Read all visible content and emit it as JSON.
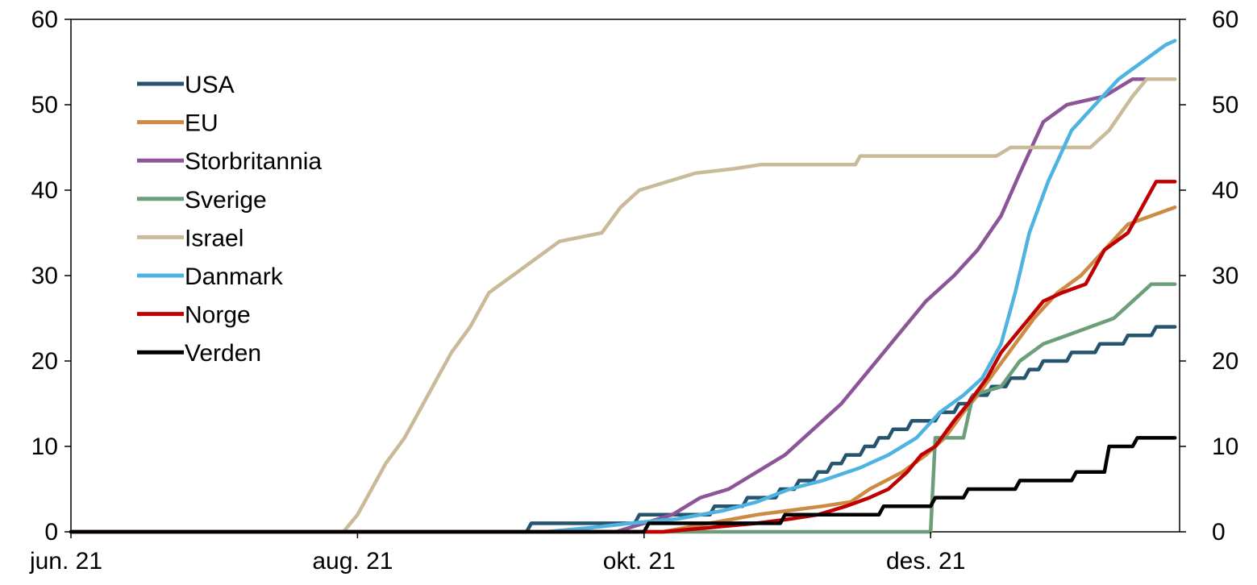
{
  "chart_data": {
    "type": "line",
    "title": "",
    "xlabel": "",
    "ylabel": "",
    "x_domain": [
      "2021-06-01",
      "2022-01-23"
    ],
    "ylim": [
      0,
      60
    ],
    "y_ticks": [
      0,
      10,
      20,
      30,
      40,
      50,
      60
    ],
    "y_tick_labels": [
      "0",
      "10",
      "20",
      "30",
      "40",
      "50",
      "60"
    ],
    "y_right_ticks": [
      0,
      10,
      20,
      30,
      40,
      50,
      60
    ],
    "y_right_tick_labels": [
      "0",
      "10",
      "20",
      "30",
      "40",
      "50",
      "60"
    ],
    "x_ticks": [
      "2021-06-01",
      "2021-08-01",
      "2021-10-01",
      "2021-12-01"
    ],
    "x_tick_labels": [
      "jun. 21",
      "aug. 21",
      "okt. 21",
      "des. 21"
    ],
    "grid": false,
    "legend_position": "top-left",
    "series": [
      {
        "name": "USA",
        "color": "#25546F",
        "points": [
          [
            "2021-06-01",
            0
          ],
          [
            "2021-09-06",
            0
          ],
          [
            "2021-09-07",
            1
          ],
          [
            "2021-09-29",
            1
          ],
          [
            "2021-09-30",
            2
          ],
          [
            "2021-10-15",
            2
          ],
          [
            "2021-10-16",
            3
          ],
          [
            "2021-10-22",
            3
          ],
          [
            "2021-10-23",
            4
          ],
          [
            "2021-10-29",
            4
          ],
          [
            "2021-10-30",
            5
          ],
          [
            "2021-11-02",
            5
          ],
          [
            "2021-11-03",
            6
          ],
          [
            "2021-11-06",
            6
          ],
          [
            "2021-11-07",
            7
          ],
          [
            "2021-11-09",
            7
          ],
          [
            "2021-11-10",
            8
          ],
          [
            "2021-11-12",
            8
          ],
          [
            "2021-11-13",
            9
          ],
          [
            "2021-11-16",
            9
          ],
          [
            "2021-11-17",
            10
          ],
          [
            "2021-11-19",
            10
          ],
          [
            "2021-11-20",
            11
          ],
          [
            "2021-11-22",
            11
          ],
          [
            "2021-11-23",
            12
          ],
          [
            "2021-11-26",
            12
          ],
          [
            "2021-11-27",
            13
          ],
          [
            "2021-12-02",
            13
          ],
          [
            "2021-12-03",
            14
          ],
          [
            "2021-12-06",
            14
          ],
          [
            "2021-12-07",
            15
          ],
          [
            "2021-12-09",
            15
          ],
          [
            "2021-12-10",
            16
          ],
          [
            "2021-12-13",
            16
          ],
          [
            "2021-12-14",
            17
          ],
          [
            "2021-12-17",
            17
          ],
          [
            "2021-12-18",
            18
          ],
          [
            "2021-12-21",
            18
          ],
          [
            "2021-12-22",
            19
          ],
          [
            "2021-12-24",
            19
          ],
          [
            "2021-12-25",
            20
          ],
          [
            "2021-12-30",
            20
          ],
          [
            "2021-12-31",
            21
          ],
          [
            "2022-01-05",
            21
          ],
          [
            "2022-01-06",
            22
          ],
          [
            "2022-01-11",
            22
          ],
          [
            "2022-01-12",
            23
          ],
          [
            "2022-01-17",
            23
          ],
          [
            "2022-01-18",
            24
          ],
          [
            "2022-01-22",
            24
          ]
        ]
      },
      {
        "name": "EU",
        "color": "#CC8A43",
        "points": [
          [
            "2021-06-01",
            0
          ],
          [
            "2021-10-05",
            0
          ],
          [
            "2021-10-10",
            0.5
          ],
          [
            "2021-10-15",
            1
          ],
          [
            "2021-10-20",
            1.5
          ],
          [
            "2021-10-25",
            2
          ],
          [
            "2021-11-01",
            2.5
          ],
          [
            "2021-11-08",
            3
          ],
          [
            "2021-11-14",
            3.5
          ],
          [
            "2021-11-18",
            5
          ],
          [
            "2021-11-25",
            7
          ],
          [
            "2021-11-30",
            9
          ],
          [
            "2021-12-04",
            11
          ],
          [
            "2021-12-08",
            14
          ],
          [
            "2021-12-11",
            16
          ],
          [
            "2021-12-15",
            19
          ],
          [
            "2021-12-19",
            22
          ],
          [
            "2021-12-23",
            25
          ],
          [
            "2021-12-28",
            28
          ],
          [
            "2022-01-02",
            30
          ],
          [
            "2022-01-07",
            33
          ],
          [
            "2022-01-12",
            36
          ],
          [
            "2022-01-22",
            38
          ]
        ]
      },
      {
        "name": "Storbritannia",
        "color": "#8B5597",
        "points": [
          [
            "2021-06-01",
            0
          ],
          [
            "2021-09-25",
            0
          ],
          [
            "2021-10-01",
            1
          ],
          [
            "2021-10-07",
            2
          ],
          [
            "2021-10-13",
            4
          ],
          [
            "2021-10-19",
            5
          ],
          [
            "2021-10-25",
            7
          ],
          [
            "2021-10-31",
            9
          ],
          [
            "2021-11-06",
            12
          ],
          [
            "2021-11-12",
            15
          ],
          [
            "2021-11-18",
            19
          ],
          [
            "2021-11-24",
            23
          ],
          [
            "2021-11-30",
            27
          ],
          [
            "2021-12-06",
            30
          ],
          [
            "2021-12-11",
            33
          ],
          [
            "2021-12-16",
            37
          ],
          [
            "2021-12-20",
            42
          ],
          [
            "2021-12-25",
            48
          ],
          [
            "2021-12-30",
            50
          ],
          [
            "2022-01-07",
            51
          ],
          [
            "2022-01-13",
            53
          ],
          [
            "2022-01-22",
            53
          ]
        ]
      },
      {
        "name": "Sverige",
        "color": "#6C9E7A",
        "points": [
          [
            "2021-06-01",
            0
          ],
          [
            "2021-12-01",
            0
          ],
          [
            "2021-12-02",
            11
          ],
          [
            "2021-12-08",
            11
          ],
          [
            "2021-12-10",
            16
          ],
          [
            "2021-12-16",
            17
          ],
          [
            "2021-12-20",
            20
          ],
          [
            "2021-12-25",
            22
          ],
          [
            "2021-12-30",
            23
          ],
          [
            "2022-01-04",
            24
          ],
          [
            "2022-01-09",
            25
          ],
          [
            "2022-01-13",
            27
          ],
          [
            "2022-01-17",
            29
          ],
          [
            "2022-01-22",
            29
          ]
        ]
      },
      {
        "name": "Israel",
        "color": "#C9BB98",
        "points": [
          [
            "2021-06-01",
            0
          ],
          [
            "2021-07-29",
            0
          ],
          [
            "2021-08-01",
            2
          ],
          [
            "2021-08-04",
            5
          ],
          [
            "2021-08-07",
            8
          ],
          [
            "2021-08-11",
            11
          ],
          [
            "2021-08-15",
            15
          ],
          [
            "2021-08-18",
            18
          ],
          [
            "2021-08-21",
            21
          ],
          [
            "2021-08-25",
            24
          ],
          [
            "2021-08-29",
            28
          ],
          [
            "2021-09-03",
            30
          ],
          [
            "2021-09-08",
            32
          ],
          [
            "2021-09-13",
            34
          ],
          [
            "2021-09-22",
            35
          ],
          [
            "2021-09-26",
            38
          ],
          [
            "2021-09-30",
            40
          ],
          [
            "2021-10-06",
            41
          ],
          [
            "2021-10-12",
            42
          ],
          [
            "2021-10-20",
            42.5
          ],
          [
            "2021-10-26",
            43
          ],
          [
            "2021-11-15",
            43
          ],
          [
            "2021-11-16",
            44
          ],
          [
            "2021-12-15",
            44
          ],
          [
            "2021-12-18",
            45
          ],
          [
            "2022-01-04",
            45
          ],
          [
            "2022-01-08",
            47
          ],
          [
            "2022-01-13",
            51
          ],
          [
            "2022-01-16",
            53
          ],
          [
            "2022-01-22",
            53
          ]
        ]
      },
      {
        "name": "Danmark",
        "color": "#4EB3E0",
        "points": [
          [
            "2021-06-01",
            0
          ],
          [
            "2021-09-10",
            0
          ],
          [
            "2021-09-20",
            0.5
          ],
          [
            "2021-09-28",
            1
          ],
          [
            "2021-10-08",
            1.5
          ],
          [
            "2021-10-18",
            2.5
          ],
          [
            "2021-10-25",
            3.5
          ],
          [
            "2021-11-01",
            5
          ],
          [
            "2021-11-08",
            6
          ],
          [
            "2021-11-16",
            7.5
          ],
          [
            "2021-11-22",
            9
          ],
          [
            "2021-11-28",
            11
          ],
          [
            "2021-12-03",
            14
          ],
          [
            "2021-12-08",
            16
          ],
          [
            "2021-12-12",
            18
          ],
          [
            "2021-12-16",
            22
          ],
          [
            "2021-12-19",
            28
          ],
          [
            "2021-12-22",
            35
          ],
          [
            "2021-12-26",
            41
          ],
          [
            "2021-12-31",
            47
          ],
          [
            "2022-01-05",
            50
          ],
          [
            "2022-01-10",
            53
          ],
          [
            "2022-01-15",
            55
          ],
          [
            "2022-01-20",
            57
          ],
          [
            "2022-01-22",
            57.5
          ]
        ]
      },
      {
        "name": "Norge",
        "color": "#C00000",
        "points": [
          [
            "2021-06-01",
            0
          ],
          [
            "2021-10-05",
            0
          ],
          [
            "2021-10-15",
            0.5
          ],
          [
            "2021-10-25",
            1
          ],
          [
            "2021-11-01",
            1.5
          ],
          [
            "2021-11-07",
            2
          ],
          [
            "2021-11-13",
            3
          ],
          [
            "2021-11-18",
            4
          ],
          [
            "2021-11-22",
            5
          ],
          [
            "2021-11-26",
            7
          ],
          [
            "2021-11-29",
            9
          ],
          [
            "2021-12-02",
            10
          ],
          [
            "2021-12-06",
            13
          ],
          [
            "2021-12-09",
            15
          ],
          [
            "2021-12-13",
            18
          ],
          [
            "2021-12-16",
            21
          ],
          [
            "2021-12-19",
            23
          ],
          [
            "2021-12-22",
            25
          ],
          [
            "2021-12-25",
            27
          ],
          [
            "2021-12-29",
            28
          ],
          [
            "2022-01-03",
            29
          ],
          [
            "2022-01-07",
            33
          ],
          [
            "2022-01-12",
            35
          ],
          [
            "2022-01-16",
            39
          ],
          [
            "2022-01-18",
            41
          ],
          [
            "2022-01-22",
            41
          ]
        ]
      },
      {
        "name": "Verden",
        "color": "#000000",
        "points": [
          [
            "2021-06-01",
            0
          ],
          [
            "2021-10-01",
            0
          ],
          [
            "2021-10-02",
            1
          ],
          [
            "2021-10-30",
            1
          ],
          [
            "2021-10-31",
            2
          ],
          [
            "2021-11-20",
            2
          ],
          [
            "2021-11-21",
            3
          ],
          [
            "2021-12-01",
            3
          ],
          [
            "2021-12-02",
            4
          ],
          [
            "2021-12-08",
            4
          ],
          [
            "2021-12-09",
            5
          ],
          [
            "2021-12-19",
            5
          ],
          [
            "2021-12-20",
            6
          ],
          [
            "2021-12-31",
            6
          ],
          [
            "2022-01-01",
            7
          ],
          [
            "2022-01-07",
            7
          ],
          [
            "2022-01-08",
            10
          ],
          [
            "2022-01-13",
            10
          ],
          [
            "2022-01-14",
            11
          ],
          [
            "2022-01-22",
            11
          ]
        ]
      }
    ]
  }
}
